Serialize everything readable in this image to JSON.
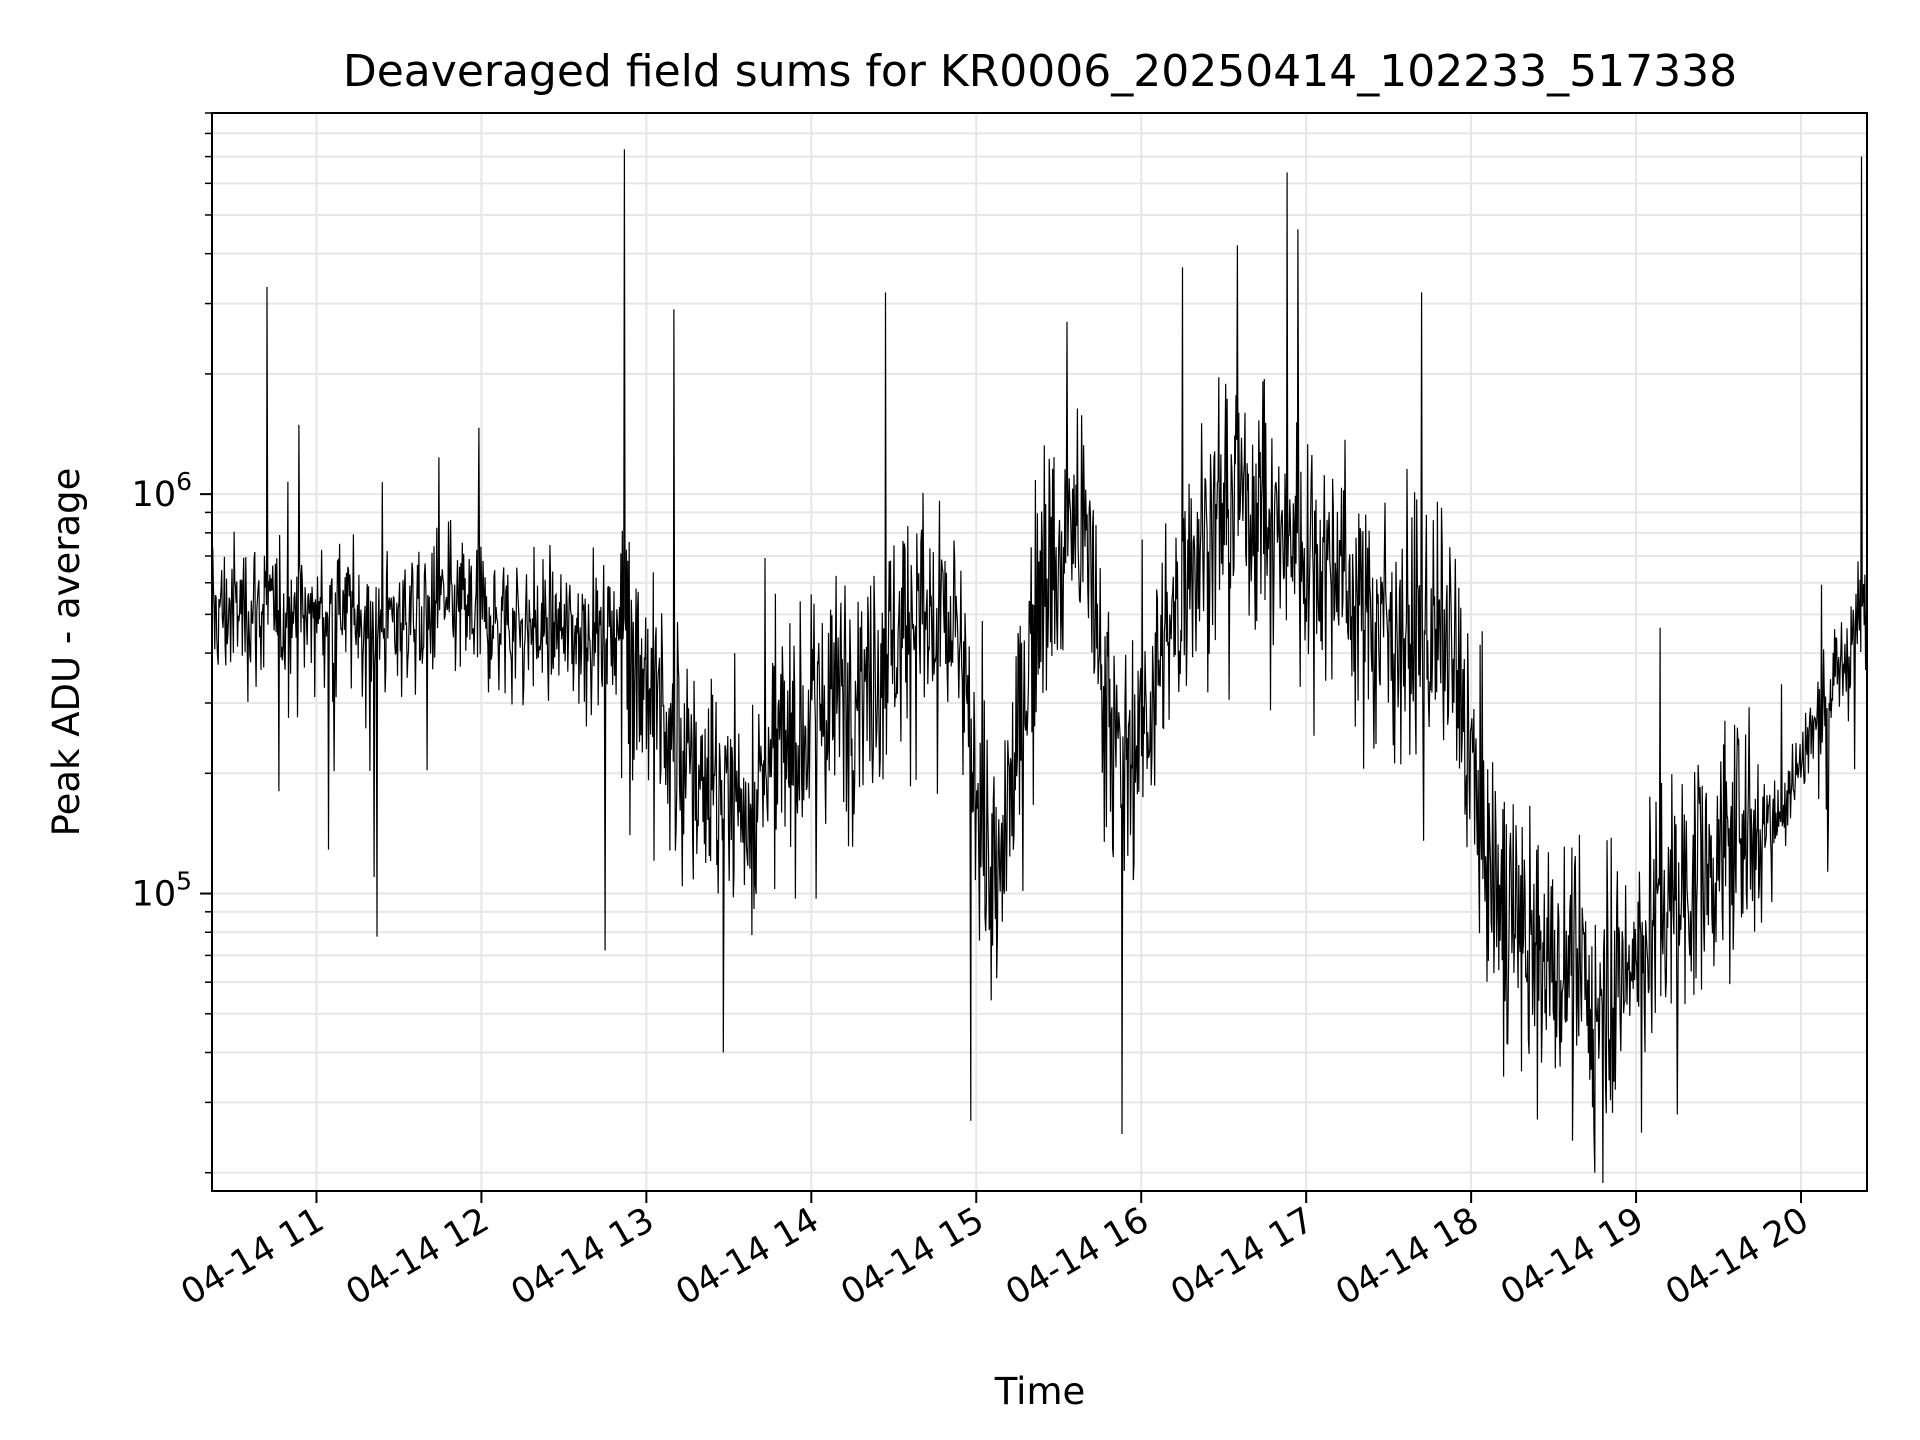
{
  "chart_data": {
    "type": "line",
    "title": "Deaveraged field sums for KR0006_20250414_102233_517338",
    "xlabel": "Time",
    "ylabel": "Peak ADU - average",
    "yscale": "log",
    "ylim": [
      18000,
      9000000
    ],
    "xlim": [
      "2025-04-14 10:22",
      "2025-04-14 20:24"
    ],
    "grid": true,
    "line_color": "#000000",
    "grid_color": "#e6e6e6",
    "x_ticks": [
      {
        "at": "2025-04-14 11:00",
        "label": "04-14 11"
      },
      {
        "at": "2025-04-14 12:00",
        "label": "04-14 12"
      },
      {
        "at": "2025-04-14 13:00",
        "label": "04-14 13"
      },
      {
        "at": "2025-04-14 14:00",
        "label": "04-14 14"
      },
      {
        "at": "2025-04-14 15:00",
        "label": "04-14 15"
      },
      {
        "at": "2025-04-14 16:00",
        "label": "04-14 16"
      },
      {
        "at": "2025-04-14 17:00",
        "label": "04-14 17"
      },
      {
        "at": "2025-04-14 18:00",
        "label": "04-14 18"
      },
      {
        "at": "2025-04-14 19:00",
        "label": "04-14 19"
      },
      {
        "at": "2025-04-14 20:00",
        "label": "04-14 20"
      }
    ],
    "y_ticks": [
      {
        "value": 100000,
        "base": "10",
        "exp": "5"
      },
      {
        "value": 1000000,
        "base": "10",
        "exp": "6"
      }
    ],
    "series": [
      {
        "x": [
          "2025-04-14 10:22",
          "2025-04-14 10:37",
          "2025-04-14 10:52",
          "2025-04-14 11:07",
          "2025-04-14 11:22",
          "2025-04-14 11:37",
          "2025-04-14 11:52",
          "2025-04-14 12:07",
          "2025-04-14 12:22",
          "2025-04-14 12:37",
          "2025-04-14 12:52",
          "2025-04-14 13:07",
          "2025-04-14 13:22",
          "2025-04-14 13:37",
          "2025-04-14 13:52",
          "2025-04-14 14:07",
          "2025-04-14 14:22",
          "2025-04-14 14:37",
          "2025-04-14 14:52",
          "2025-04-14 15:07",
          "2025-04-14 15:22",
          "2025-04-14 15:37",
          "2025-04-14 15:52",
          "2025-04-14 16:07",
          "2025-04-14 16:22",
          "2025-04-14 16:37",
          "2025-04-14 16:52",
          "2025-04-14 17:07",
          "2025-04-14 17:22",
          "2025-04-14 17:37",
          "2025-04-14 17:52",
          "2025-04-14 18:07",
          "2025-04-14 18:22",
          "2025-04-14 18:37",
          "2025-04-14 18:52",
          "2025-04-14 19:07",
          "2025-04-14 19:22",
          "2025-04-14 19:37",
          "2025-04-14 19:52",
          "2025-04-14 20:07",
          "2025-04-14 20:22"
        ],
        "y": [
          500000,
          520000,
          480000,
          510000,
          470000,
          500000,
          520000,
          480000,
          460000,
          450000,
          470000,
          250000,
          180000,
          170000,
          240000,
          300000,
          380000,
          500000,
          450000,
          90000,
          550000,
          900000,
          200000,
          350000,
          850000,
          1000000,
          800000,
          700000,
          500000,
          450000,
          420000,
          110000,
          70000,
          60000,
          55000,
          90000,
          110000,
          140000,
          160000,
          280000,
          500000
        ]
      }
    ],
    "peaks": [
      {
        "x": "2025-04-14 10:42",
        "y": 3300000
      },
      {
        "x": "2025-04-14 12:52",
        "y": 7300000
      },
      {
        "x": "2025-04-14 13:10",
        "y": 2900000
      },
      {
        "x": "2025-04-14 14:27",
        "y": 3200000
      },
      {
        "x": "2025-04-14 15:33",
        "y": 2700000
      },
      {
        "x": "2025-04-14 16:15",
        "y": 3700000
      },
      {
        "x": "2025-04-14 16:35",
        "y": 4200000
      },
      {
        "x": "2025-04-14 16:57",
        "y": 4600000
      },
      {
        "x": "2025-04-14 17:42",
        "y": 3200000
      },
      {
        "x": "2025-04-14 20:22",
        "y": 7000000
      }
    ],
    "dips": [
      {
        "x": "2025-04-14 11:22",
        "y": 78000
      },
      {
        "x": "2025-04-14 12:45",
        "y": 72000
      },
      {
        "x": "2025-04-14 13:28",
        "y": 40000
      },
      {
        "x": "2025-04-14 14:58",
        "y": 27000
      },
      {
        "x": "2025-04-14 15:53",
        "y": 25000
      },
      {
        "x": "2025-04-14 18:45",
        "y": 20000
      },
      {
        "x": "2025-04-14 19:15",
        "y": 28000
      }
    ]
  }
}
